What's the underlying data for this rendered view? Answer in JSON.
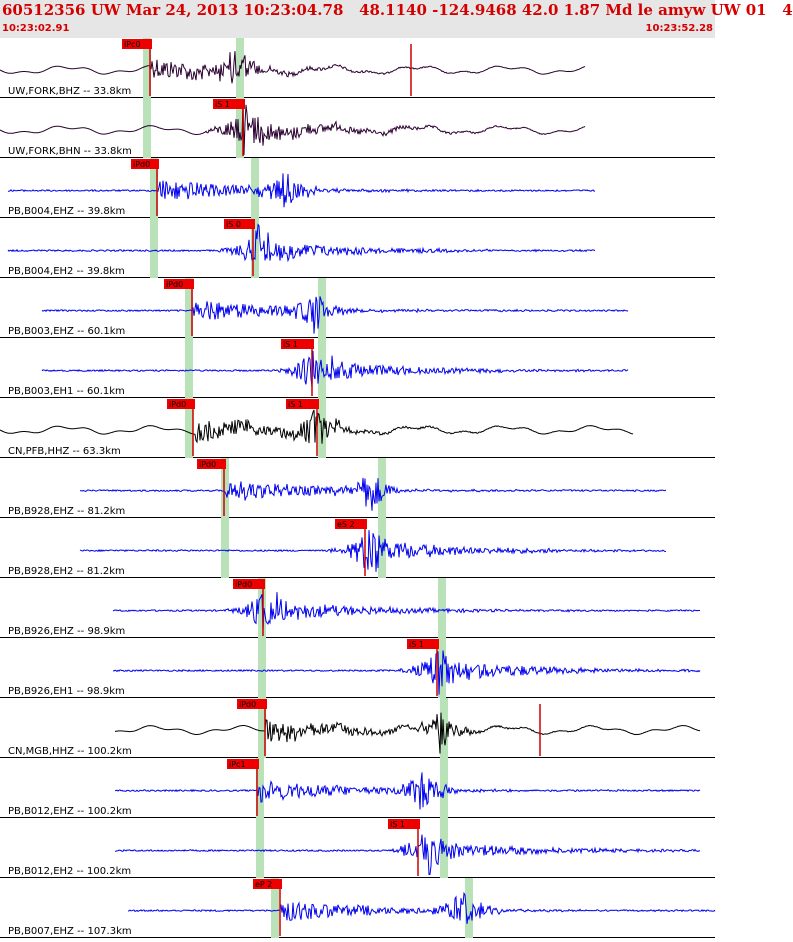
{
  "header": {
    "title": "60512356 UW Mar 24, 2013 10:23:04.78   48.1140 -124.9468 42.0 1.87 Md le amyw UW 01   4",
    "start_time": "10:23:02.91",
    "end_time": "10:23:52.28"
  },
  "colors": {
    "header_bg": "#e6e6e6",
    "header_text": "#d40000",
    "pick_flag": "#ee0000",
    "pick_line": "#cc0000",
    "window_band": "#b9e2b9",
    "trace_blue": "#0000ee",
    "trace_black": "#000000",
    "trace_dark_purple": "#2a0030"
  },
  "traces": [
    {
      "label": "UW,FORK,BHZ -- 33.8km",
      "color": "dark",
      "pick": "iPc0",
      "kind": "P"
    },
    {
      "label": "UW,FORK,BHN -- 33.8km",
      "color": "dark",
      "pick": "iS 1",
      "kind": "S"
    },
    {
      "label": "PB,B004,EHZ -- 39.8km",
      "color": "blue",
      "pick": "iPd0",
      "kind": "P"
    },
    {
      "label": "PB,B004,EH2 -- 39.8km",
      "color": "blue",
      "pick": "iS 0",
      "kind": "S"
    },
    {
      "label": "PB,B003,EHZ -- 60.1km",
      "color": "blue",
      "pick": "iPd0",
      "kind": "P"
    },
    {
      "label": "PB,B003,EH1 -- 60.1km",
      "color": "blue",
      "pick": "iS 1",
      "kind": "S"
    },
    {
      "label": "CN,PFB,HHZ -- 63.3km",
      "color": "black",
      "pick": "iPd0",
      "pick2": "iS 1",
      "kind": "PS"
    },
    {
      "label": "PB,B928,EHZ -- 81.2km",
      "color": "blue",
      "pick": "iPd0",
      "kind": "P"
    },
    {
      "label": "PB,B928,EH2 -- 81.2km",
      "color": "blue",
      "pick": "eS 2",
      "kind": "S"
    },
    {
      "label": "PB,B926,EHZ -- 98.9km",
      "color": "blue",
      "pick": "iPd0",
      "kind": "P"
    },
    {
      "label": "PB,B926,EH1 -- 98.9km",
      "color": "blue",
      "pick": "iS 1",
      "kind": "S"
    },
    {
      "label": "CN,MGB,HHZ -- 100.2km",
      "color": "black",
      "pick": "iPd0",
      "kind": "P"
    },
    {
      "label": "PB,B012,EHZ -- 100.2km",
      "color": "blue",
      "pick": "iPc1",
      "kind": "P"
    },
    {
      "label": "PB,B012,EH2 -- 100.2km",
      "color": "blue",
      "pick": "iS 1",
      "kind": "S"
    },
    {
      "label": "PB,B007,EHZ -- 107.3km",
      "color": "blue",
      "pick": "eP 2",
      "kind": "P"
    }
  ]
}
